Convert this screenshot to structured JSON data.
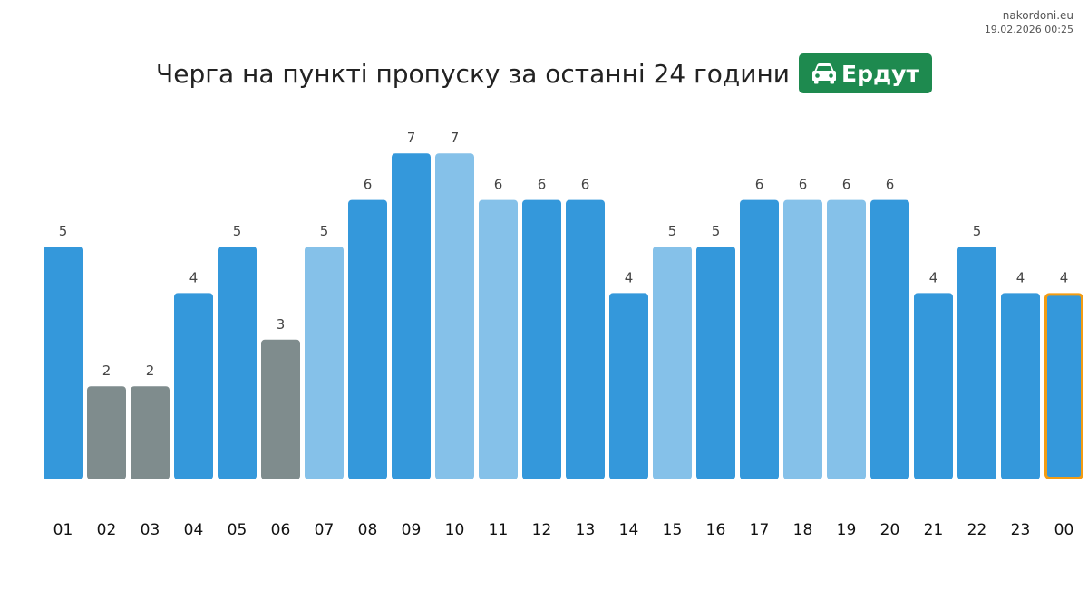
{
  "source": {
    "site": "nakordoni.eu",
    "timestamp": "19.02.2026 00:25"
  },
  "header": {
    "title": "Черга на пункті пропуску за останні 24 години",
    "checkpoint": "Ердут",
    "checkpoint_icon": "car-icon"
  },
  "colors": {
    "badge": "#1e8a4f",
    "gray": "#7f8c8d",
    "blue": "#3498db",
    "light_blue": "#85c1e9",
    "highlight_border": "#f39c12"
  },
  "chart_data": {
    "type": "bar",
    "title": "",
    "xlabel": "",
    "ylabel": "",
    "ylim": [
      0,
      7
    ],
    "grid": false,
    "legend": "none",
    "categories": [
      "01",
      "02",
      "03",
      "04",
      "05",
      "06",
      "07",
      "08",
      "09",
      "10",
      "11",
      "12",
      "13",
      "14",
      "15",
      "16",
      "17",
      "18",
      "19",
      "20",
      "21",
      "22",
      "23",
      "00"
    ],
    "values": [
      5,
      2,
      2,
      4,
      5,
      3,
      5,
      6,
      7,
      7,
      6,
      6,
      6,
      4,
      5,
      5,
      6,
      6,
      6,
      6,
      4,
      5,
      4,
      4
    ],
    "bar_colors": [
      "blue",
      "gray",
      "gray",
      "blue",
      "blue",
      "gray",
      "light_blue",
      "blue",
      "blue",
      "light_blue",
      "light_blue",
      "blue",
      "blue",
      "blue",
      "light_blue",
      "blue",
      "blue",
      "light_blue",
      "light_blue",
      "blue",
      "blue",
      "blue",
      "blue",
      "blue"
    ],
    "highlighted_index": 23
  }
}
